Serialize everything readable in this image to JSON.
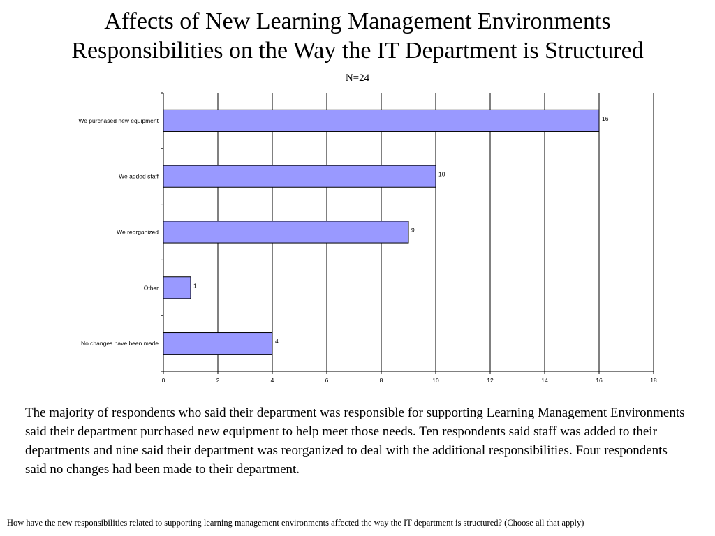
{
  "slide": {
    "title_line1": "Affects of New Learning Management Environments",
    "title_line2": "Responsibilities on the Way the IT Department is Structured",
    "subtitle": "N=24",
    "body": "The majority of respondents who said their department was responsible for supporting Learning Management Environments said their department purchased new equipment to help meet those needs.  Ten respondents said staff was added to their departments and nine said their department was reorganized to deal with the additional responsibilities.  Four respondents said no changes had been made to their department.",
    "footnote": "How have the new responsibilities related to supporting learning management environments affected the way the IT department is structured? (Choose all that apply)"
  },
  "chart_data": {
    "type": "bar",
    "orientation": "horizontal",
    "categories": [
      "We purchased new  equipment",
      "We added staff",
      "We reorganized",
      "Other",
      "No changes have been made"
    ],
    "values": [
      16,
      10,
      9,
      1,
      4
    ],
    "data_labels": [
      "16",
      "10",
      "9",
      "1",
      "4"
    ],
    "xlim": [
      0,
      18
    ],
    "x_ticks": [
      0,
      2,
      4,
      6,
      8,
      10,
      12,
      14,
      16,
      18
    ],
    "grid": true,
    "bar_color": "#9999ff",
    "bar_stroke": "#000000"
  }
}
